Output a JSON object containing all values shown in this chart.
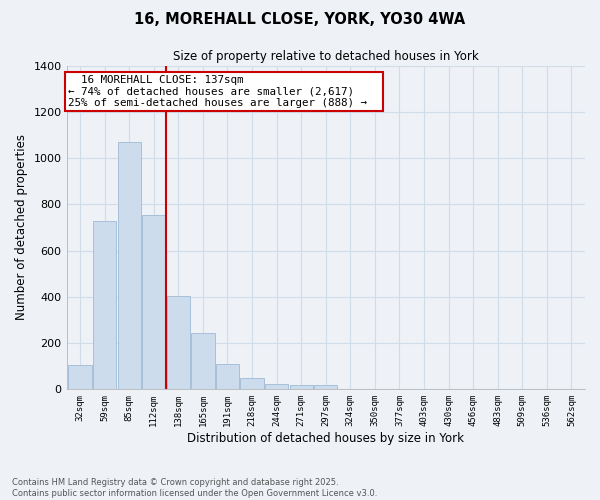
{
  "title": "16, MOREHALL CLOSE, YORK, YO30 4WA",
  "subtitle": "Size of property relative to detached houses in York",
  "xlabel": "Distribution of detached houses by size in York",
  "ylabel": "Number of detached properties",
  "bar_color": "#ccdcec",
  "bar_edge_color": "#a8c0d8",
  "bins": [
    "32sqm",
    "59sqm",
    "85sqm",
    "112sqm",
    "138sqm",
    "165sqm",
    "191sqm",
    "218sqm",
    "244sqm",
    "271sqm",
    "297sqm",
    "324sqm",
    "350sqm",
    "377sqm",
    "403sqm",
    "430sqm",
    "456sqm",
    "483sqm",
    "509sqm",
    "536sqm",
    "562sqm"
  ],
  "values": [
    107,
    730,
    1070,
    755,
    405,
    245,
    110,
    50,
    25,
    20,
    18,
    0,
    0,
    0,
    0,
    0,
    0,
    0,
    0,
    0,
    0
  ],
  "vline_bin_index": 4,
  "vline_color": "#cc0000",
  "annotation_title": "16 MOREHALL CLOSE: 137sqm",
  "annotation_line1": "← 74% of detached houses are smaller (2,617)",
  "annotation_line2": "25% of semi-detached houses are larger (888) →",
  "annotation_box_color": "#ffffff",
  "annotation_box_edge": "#cc0000",
  "ylim": [
    0,
    1400
  ],
  "yticks": [
    0,
    200,
    400,
    600,
    800,
    1000,
    1200,
    1400
  ],
  "footer1": "Contains HM Land Registry data © Crown copyright and database right 2025.",
  "footer2": "Contains public sector information licensed under the Open Government Licence v3.0.",
  "bg_color": "#eef2f7",
  "grid_color": "#d0dce8"
}
